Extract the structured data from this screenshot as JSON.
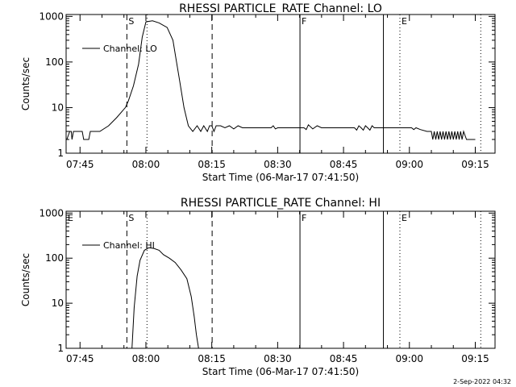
{
  "footer_timestamp": "2-Sep-2022 04:32",
  "chart_data": [
    {
      "type": "line",
      "title": "RHESSI PARTICLE_RATE Channel: LO",
      "xlabel": "Start Time (06-Mar-17 07:41:50)",
      "ylabel": "Counts/sec",
      "y_scale": "log",
      "ylim": [
        1,
        1100
      ],
      "xlim": [
        "07:41:50",
        "09:19:30"
      ],
      "x_ticks": [
        "07:45",
        "08:00",
        "08:15",
        "08:30",
        "08:45",
        "09:00",
        "09:15"
      ],
      "y_ticks": [
        "1",
        "10",
        "100",
        "1000"
      ],
      "legend": {
        "label": "Channel: LO",
        "placement": "top-left"
      },
      "markers": [
        {
          "time": "07:55:40",
          "style": "dashed",
          "label": "S"
        },
        {
          "time": "08:00:15",
          "style": "dotted",
          "label": ""
        },
        {
          "time": "08:15:05",
          "style": "dashed",
          "label": ""
        },
        {
          "time": "08:35:05",
          "style": "solid",
          "label": "F"
        },
        {
          "time": "08:54:05",
          "style": "solid",
          "label": ""
        },
        {
          "time": "08:57:50",
          "style": "dotted",
          "label": "E"
        },
        {
          "time": "09:16:15",
          "style": "dotted",
          "label": ""
        }
      ],
      "series": [
        {
          "x": [
            "07:42:00",
            "07:42:40",
            "07:43:00",
            "07:43:10",
            "07:43:30",
            "07:44:30",
            "07:45:30",
            "07:45:50",
            "07:46:00",
            "07:47:00",
            "07:47:20",
            "07:48:00",
            "07:48:30",
            "07:49:30",
            "07:51:30",
            "07:53:20",
            "07:55:20",
            "07:56:00",
            "07:57:10",
            "07:58:20",
            "07:59:10",
            "08:00:00",
            "08:01:30",
            "08:03:00",
            "08:04:50",
            "08:06:10",
            "08:06:50",
            "08:07:40",
            "08:08:40",
            "08:09:40",
            "08:10:40",
            "08:11:40",
            "08:12:30",
            "08:13:10",
            "08:14:00",
            "08:14:30",
            "08:15:00",
            "08:15:30",
            "08:16:00",
            "08:16:30",
            "08:17:00",
            "08:18:00",
            "08:19:00",
            "08:20:00",
            "08:21:00",
            "08:22:00",
            "08:24:00",
            "08:26:00",
            "08:27:30",
            "08:28:00",
            "08:28:30",
            "08:29:00",
            "08:29:30",
            "08:30:00",
            "08:32:00",
            "08:34:00",
            "08:36:00",
            "08:36:30",
            "08:37:00",
            "08:38:00",
            "08:39:00",
            "08:40:00",
            "08:42:00",
            "08:44:00",
            "08:45:30",
            "08:46:30",
            "08:47:30",
            "08:48:00",
            "08:48:30",
            "08:49:00",
            "08:49:30",
            "08:50:00",
            "08:50:30",
            "08:51:00",
            "08:51:30",
            "08:52:00",
            "08:53:00",
            "08:55:00",
            "08:57:00",
            "08:59:00",
            "09:00:30",
            "09:01:00",
            "09:01:30",
            "09:02:30",
            "09:04:00",
            "09:05:00",
            "09:05:20",
            "09:05:40",
            "09:06:00",
            "09:06:20",
            "09:06:40",
            "09:07:00",
            "09:07:20",
            "09:07:40",
            "09:08:00",
            "09:08:20",
            "09:08:40",
            "09:09:00",
            "09:09:20",
            "09:09:40",
            "09:10:00",
            "09:10:20",
            "09:10:40",
            "09:11:00",
            "09:11:20",
            "09:11:40",
            "09:12:00",
            "09:12:20",
            "09:13:00",
            "09:15:00"
          ],
          "values": [
            2,
            3,
            3,
            2,
            3,
            3,
            3,
            2,
            2,
            2,
            3,
            3,
            3,
            3,
            4,
            6,
            10,
            14,
            30,
            90,
            350,
            760,
            800,
            720,
            570,
            300,
            120,
            40,
            10,
            4,
            3,
            4,
            3,
            4,
            3,
            4,
            4,
            3,
            4,
            4,
            4,
            3.6,
            4,
            3.4,
            4,
            3.6,
            3.6,
            3.6,
            3.6,
            3.6,
            3.6,
            4,
            3.4,
            3.6,
            3.6,
            3.6,
            3.6,
            3.3,
            4.2,
            3.4,
            4,
            3.6,
            3.6,
            3.6,
            3.6,
            3.6,
            3.6,
            3.2,
            4,
            3.6,
            3.2,
            4,
            3.6,
            3.2,
            4,
            3.6,
            3.6,
            3.6,
            3.6,
            3.6,
            3.6,
            3.3,
            3.6,
            3.3,
            3,
            3,
            2,
            3,
            2,
            3,
            2,
            3,
            2,
            3,
            2,
            3,
            2,
            3,
            2,
            3,
            2,
            3,
            2,
            3,
            2,
            3,
            2,
            3,
            2,
            2
          ]
        }
      ]
    },
    {
      "type": "line",
      "title": "RHESSI PARTICLE_RATE Channel: HI",
      "xlabel": "Start Time (06-Mar-17 07:41:50)",
      "ylabel": "Counts/sec",
      "y_scale": "log",
      "ylim": [
        1,
        1100
      ],
      "xlim": [
        "07:41:50",
        "09:19:30"
      ],
      "x_ticks": [
        "07:45",
        "08:00",
        "08:15",
        "08:30",
        "08:45",
        "09:00",
        "09:15"
      ],
      "y_ticks": [
        "1",
        "10",
        "100",
        "1000"
      ],
      "legend": {
        "label": "Channel: HI",
        "placement": "top-left"
      },
      "markers": [
        {
          "time": "07:41:50",
          "style": "solid",
          "label": "E"
        },
        {
          "time": "07:55:40",
          "style": "dashed",
          "label": "S"
        },
        {
          "time": "08:00:15",
          "style": "dotted",
          "label": ""
        },
        {
          "time": "08:15:05",
          "style": "dashed",
          "label": ""
        },
        {
          "time": "08:35:05",
          "style": "solid",
          "label": "F"
        },
        {
          "time": "08:54:05",
          "style": "solid",
          "label": ""
        },
        {
          "time": "08:57:50",
          "style": "dotted",
          "label": "E"
        },
        {
          "time": "09:16:15",
          "style": "dotted",
          "label": ""
        }
      ],
      "series": [
        {
          "x": [
            "07:56:50",
            "07:57:20",
            "07:58:00",
            "07:58:40",
            "07:59:40",
            "08:00:40",
            "08:01:50",
            "08:03:00",
            "08:04:00",
            "08:05:20",
            "08:06:40",
            "08:08:00",
            "08:09:20",
            "08:10:20",
            "08:11:00",
            "08:11:30",
            "08:12:00"
          ],
          "values": [
            1,
            8,
            40,
            90,
            150,
            170,
            165,
            150,
            120,
            100,
            80,
            55,
            35,
            14,
            5,
            2,
            1
          ]
        }
      ]
    }
  ]
}
